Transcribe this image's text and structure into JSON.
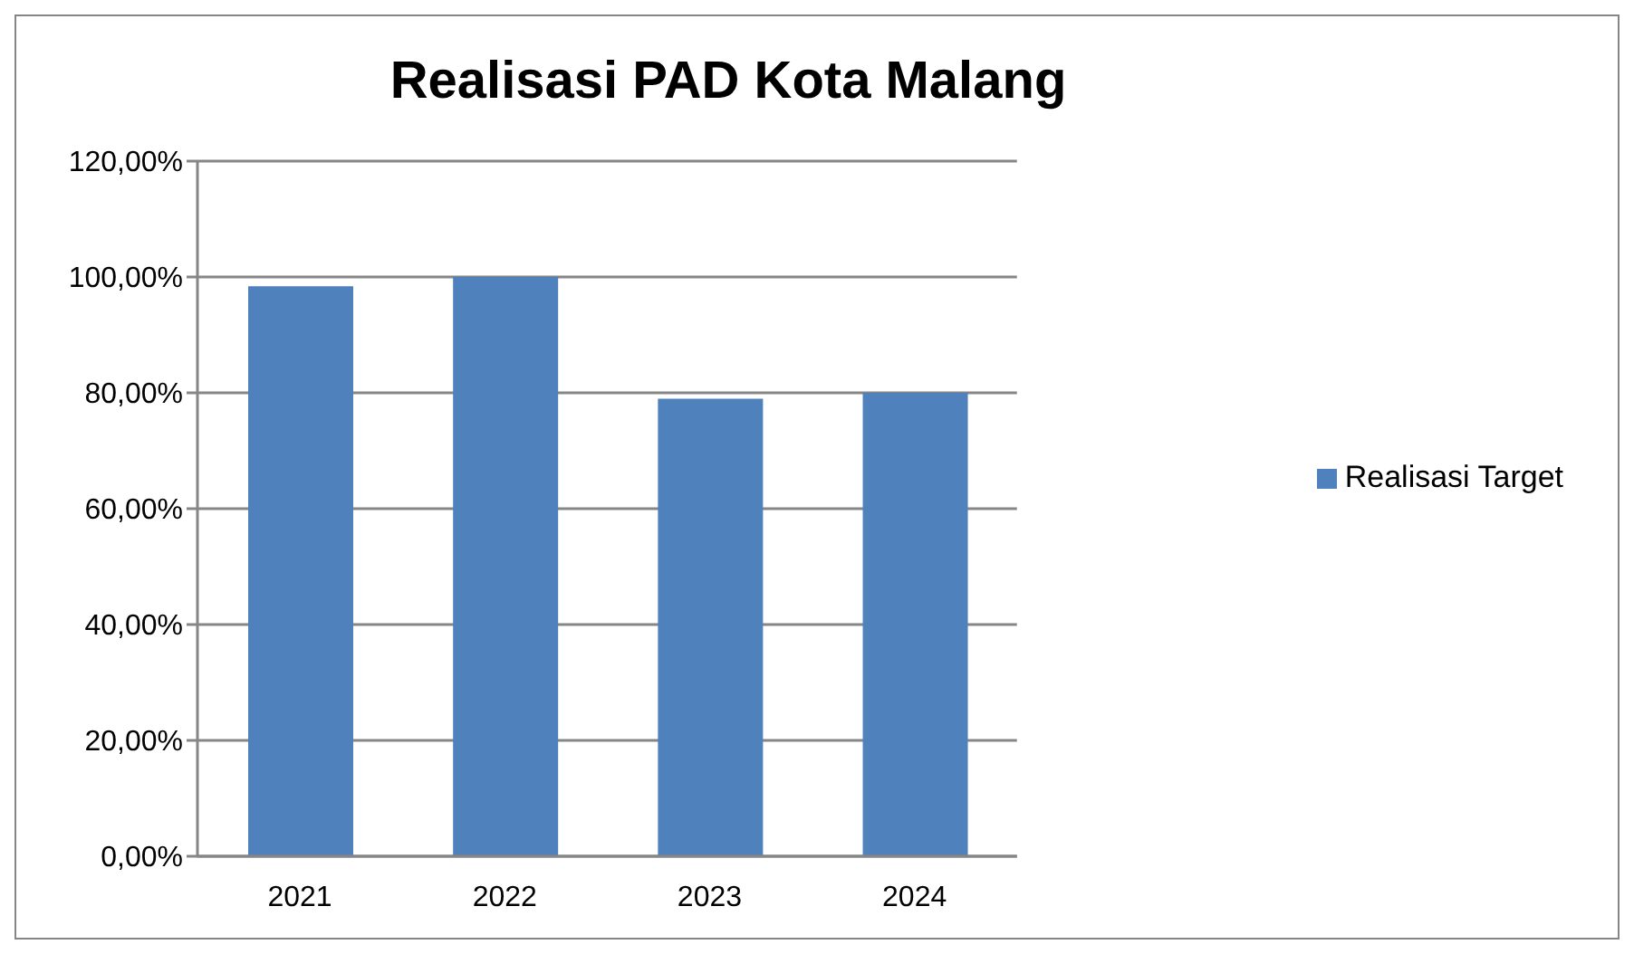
{
  "chart_data": {
    "type": "bar",
    "title": "Realisasi PAD Kota Malang",
    "categories": [
      "2021",
      "2022",
      "2023",
      "2024"
    ],
    "series": [
      {
        "name": "Realisasi Target",
        "color": "#4f81bd",
        "values": [
          98.4,
          100,
          79,
          80
        ]
      }
    ],
    "ylim": [
      0,
      120
    ],
    "yticks": [
      {
        "value": 0,
        "label": "0,00%"
      },
      {
        "value": 20,
        "label": "20,00%"
      },
      {
        "value": 40,
        "label": "40,00%"
      },
      {
        "value": 60,
        "label": "60,00%"
      },
      {
        "value": 80,
        "label": "80,00%"
      },
      {
        "value": 100,
        "label": "100,00%"
      },
      {
        "value": 120,
        "label": "120,00%"
      }
    ],
    "grid": "y",
    "legend": "right"
  }
}
